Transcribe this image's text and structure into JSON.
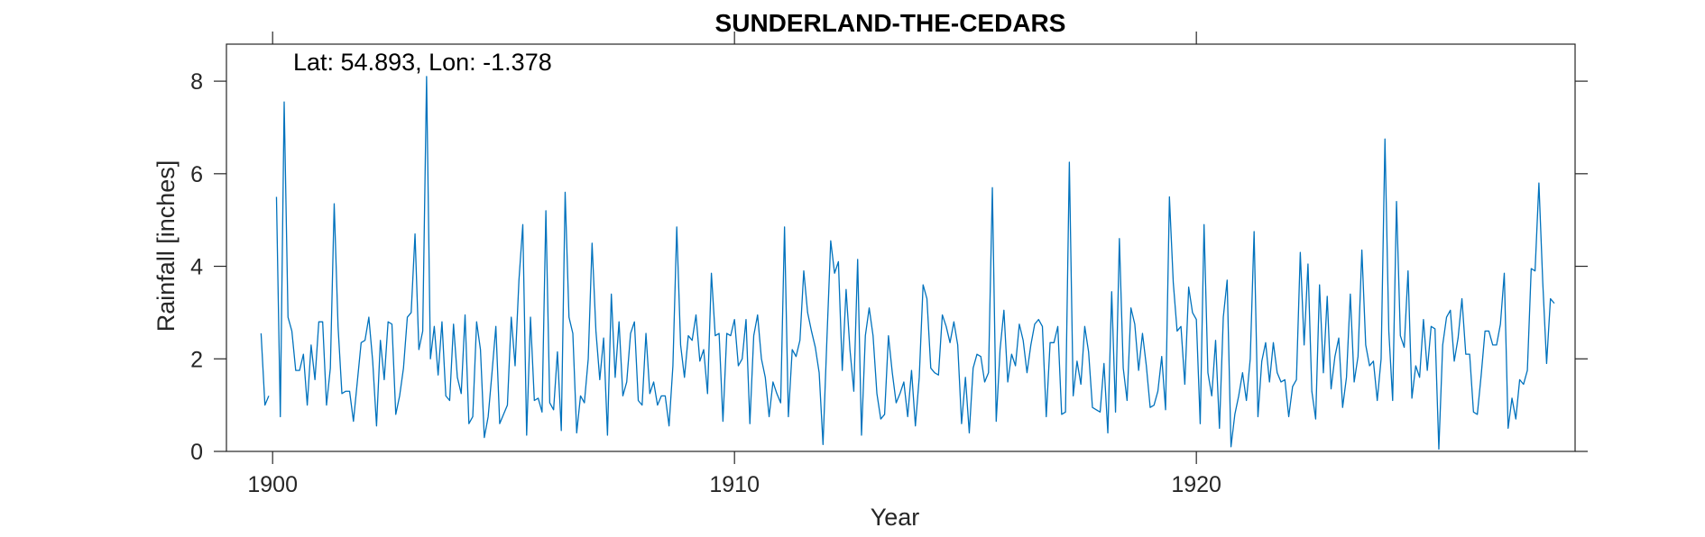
{
  "chart_data": {
    "type": "line",
    "title": "SUNDERLAND-THE-CEDARS",
    "annotation": "Lat: 54.893, Lon: -1.378",
    "xlabel": "Year",
    "ylabel": "Rainfall [inches]",
    "xlim": [
      1899.0,
      1928.2
    ],
    "ylim": [
      0,
      8.8
    ],
    "xticks": [
      1900,
      1910,
      1920
    ],
    "yticks": [
      0,
      2,
      4,
      6,
      8
    ],
    "grid": false,
    "line_color": "#0072BD",
    "series": [
      {
        "x_start": 1899.75,
        "x_step_months": 1,
        "values": [
          2.55,
          1.0,
          1.2,
          null,
          5.5,
          0.75,
          7.55,
          2.9,
          2.6,
          1.75,
          1.75,
          2.1,
          1.0,
          2.3,
          1.55,
          2.8,
          2.8,
          1.0,
          1.8,
          5.35,
          2.7,
          1.25,
          1.3,
          1.3,
          0.65,
          1.5,
          2.35,
          2.4,
          2.9,
          1.95,
          0.55,
          2.4,
          1.55,
          2.8,
          2.75,
          0.8,
          1.2,
          1.8,
          2.9,
          3.0,
          4.7,
          2.2,
          2.6,
          8.1,
          2.0,
          2.7,
          1.65,
          2.8,
          1.2,
          1.1,
          2.75,
          1.6,
          1.25,
          2.95,
          0.6,
          0.75,
          2.8,
          2.2,
          0.3,
          0.75,
          1.7,
          2.7,
          0.6,
          0.8,
          1.0,
          2.9,
          1.85,
          3.7,
          4.9,
          0.35,
          2.9,
          1.1,
          1.15,
          0.85,
          5.2,
          1.05,
          0.9,
          2.15,
          0.45,
          5.6,
          2.9,
          2.55,
          0.4,
          1.2,
          1.05,
          2.0,
          4.5,
          2.6,
          1.55,
          2.45,
          0.35,
          3.4,
          1.6,
          2.8,
          1.2,
          1.5,
          2.55,
          2.8,
          1.1,
          1.0,
          2.55,
          1.25,
          1.5,
          1.0,
          1.2,
          1.2,
          0.55,
          1.85,
          4.85,
          2.3,
          1.6,
          2.5,
          2.4,
          2.95,
          1.95,
          2.2,
          1.25,
          3.85,
          2.5,
          2.55,
          0.65,
          2.55,
          2.5,
          2.85,
          1.85,
          2.0,
          2.85,
          0.6,
          2.5,
          2.95,
          2.0,
          1.6,
          0.75,
          1.5,
          1.25,
          1.05,
          4.85,
          0.75,
          2.2,
          2.05,
          2.4,
          3.9,
          3.0,
          2.6,
          2.25,
          1.7,
          0.15,
          2.4,
          4.55,
          3.85,
          4.1,
          1.75,
          3.5,
          2.2,
          1.3,
          4.15,
          0.35,
          2.5,
          3.1,
          2.5,
          1.25,
          0.7,
          0.8,
          2.5,
          1.7,
          1.05,
          1.25,
          1.5,
          0.75,
          1.75,
          0.55,
          1.6,
          3.6,
          3.3,
          1.8,
          1.7,
          1.65,
          2.95,
          2.7,
          2.35,
          2.8,
          2.3,
          0.6,
          1.6,
          0.4,
          1.8,
          2.1,
          2.05,
          1.5,
          1.7,
          5.7,
          0.65,
          2.2,
          3.05,
          1.5,
          2.1,
          1.85,
          2.75,
          2.4,
          1.7,
          2.3,
          2.75,
          2.85,
          2.7,
          0.75,
          2.35,
          2.35,
          2.7,
          0.8,
          0.85,
          6.25,
          1.2,
          1.95,
          1.45,
          2.7,
          2.15,
          0.95,
          0.9,
          0.85,
          1.9,
          0.4,
          3.45,
          0.85,
          4.6,
          1.8,
          1.1,
          3.1,
          2.75,
          1.75,
          2.55,
          1.85,
          0.95,
          1.0,
          1.3,
          2.05,
          0.9,
          5.5,
          3.65,
          2.6,
          2.7,
          1.45,
          3.55,
          3.0,
          2.85,
          0.6,
          4.9,
          1.7,
          1.2,
          2.4,
          0.5,
          2.9,
          3.7,
          0.1,
          0.8,
          1.2,
          1.7,
          1.1,
          2.0,
          4.75,
          0.75,
          1.95,
          2.35,
          1.5,
          2.35,
          1.7,
          1.5,
          1.55,
          0.75,
          1.4,
          1.55,
          4.3,
          2.3,
          4.05,
          1.3,
          0.7,
          3.6,
          1.7,
          3.35,
          1.35,
          2.05,
          2.45,
          0.95,
          1.6,
          3.4,
          1.5,
          2.05,
          4.35,
          2.3,
          1.85,
          1.95,
          1.1,
          2.0,
          6.75,
          2.6,
          1.1,
          5.4,
          2.5,
          2.25,
          3.9,
          1.15,
          1.85,
          1.6,
          2.85,
          1.75,
          2.7,
          2.65,
          0.05,
          2.3,
          2.9,
          3.05,
          1.95,
          2.45,
          3.3,
          2.1,
          2.1,
          0.85,
          0.8,
          1.65,
          2.6,
          2.6,
          2.3,
          2.3,
          2.75,
          3.85,
          0.5,
          1.15,
          0.7,
          1.55,
          1.45,
          1.75,
          3.95,
          3.9,
          5.8,
          3.65,
          1.9,
          3.3,
          3.2
        ]
      }
    ]
  }
}
